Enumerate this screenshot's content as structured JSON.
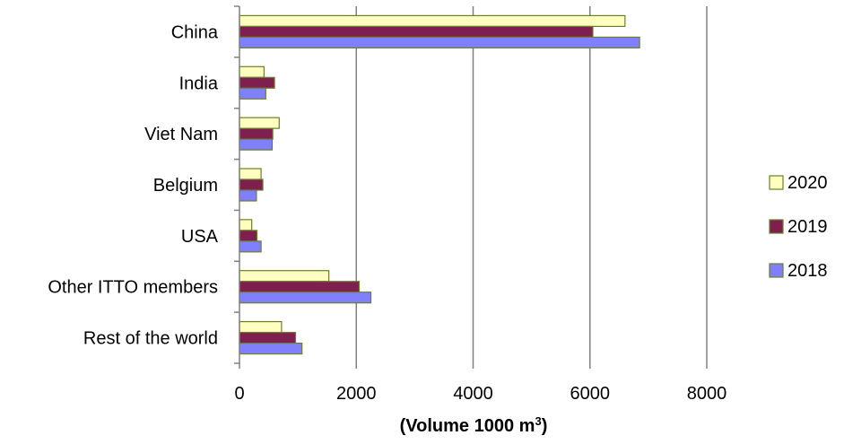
{
  "chart_data": {
    "type": "bar",
    "orientation": "horizontal",
    "categories": [
      "China",
      "India",
      "Viet Nam",
      "Belgium",
      "USA",
      "Other ITTO members",
      "Rest of the world"
    ],
    "series": [
      {
        "name": "2020",
        "color": "#FFFFC0",
        "values": [
          6600,
          420,
          680,
          370,
          210,
          1530,
          720
        ]
      },
      {
        "name": "2019",
        "color": "#7F1F4F",
        "values": [
          6050,
          600,
          570,
          400,
          300,
          2050,
          960
        ]
      },
      {
        "name": "2018",
        "color": "#8080FF",
        "values": [
          6850,
          450,
          560,
          290,
          370,
          2250,
          1070
        ]
      }
    ],
    "xlim": [
      0,
      8000
    ],
    "xticks": [
      0,
      2000,
      4000,
      6000,
      8000
    ],
    "xlabel_prefix": "(Volume 1000 m",
    "xlabel_sup": "3",
    "xlabel_suffix": ")",
    "grid": true,
    "legend": "right",
    "bar_outline_color": "#6A7F2A",
    "grid_color": "#808080"
  }
}
